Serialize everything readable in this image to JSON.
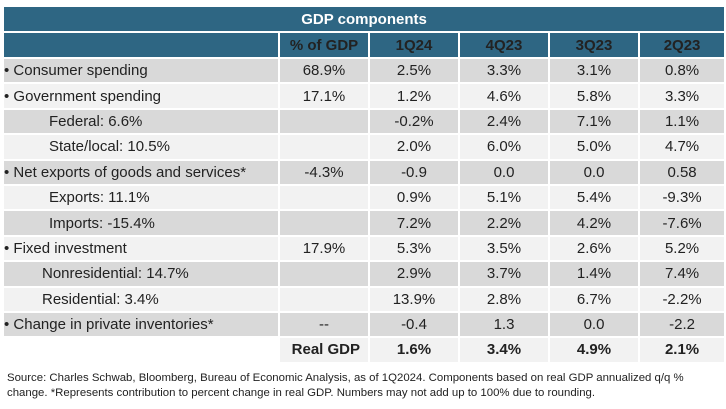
{
  "table": {
    "title": "GDP components",
    "columns": [
      "",
      "% of GDP",
      "1Q24",
      "4Q23",
      "3Q23",
      "2Q23"
    ],
    "rows": [
      {
        "label": "• Consumer spending",
        "share": "68.9%",
        "values": [
          "2.5%",
          "3.3%",
          "3.1%",
          "0.8%"
        ]
      },
      {
        "label": "• Government spending",
        "share": "17.1%",
        "values": [
          "1.2%",
          "4.6%",
          "5.8%",
          "3.3%"
        ]
      },
      {
        "label": "Federal: 6.6%",
        "share": "",
        "values": [
          "-0.2%",
          "2.4%",
          "7.1%",
          "1.1%"
        ]
      },
      {
        "label": "State/local: 10.5%",
        "share": "",
        "values": [
          "2.0%",
          "6.0%",
          "5.0%",
          "4.7%"
        ]
      },
      {
        "label": "• Net exports of goods and services*",
        "share": "-4.3%",
        "values": [
          "-0.9",
          "0.0",
          "0.0",
          "0.58"
        ]
      },
      {
        "label": "Exports: 11.1%",
        "share": "",
        "values": [
          "0.9%",
          "5.1%",
          "5.4%",
          "-9.3%"
        ]
      },
      {
        "label": "Imports: -15.4%",
        "share": "",
        "values": [
          "7.2%",
          "2.2%",
          "4.2%",
          "-7.6%"
        ]
      },
      {
        "label": "• Fixed investment",
        "share": "17.9%",
        "values": [
          "5.3%",
          "3.5%",
          "2.6%",
          "5.2%"
        ]
      },
      {
        "label": "Nonresidential: 14.7%",
        "share": "",
        "values": [
          "2.9%",
          "3.7%",
          "1.4%",
          "7.4%"
        ]
      },
      {
        "label": "Residential: 3.4%",
        "share": "",
        "values": [
          "13.9%",
          "2.8%",
          "6.7%",
          "-2.2%"
        ]
      },
      {
        "label": "• Change in private inventories*",
        "share": "--",
        "values": [
          "-0.4",
          "1.3",
          "0.0",
          "-2.2"
        ]
      }
    ],
    "total": {
      "label": "Real GDP",
      "values": [
        "1.6%",
        "3.4%",
        "4.9%",
        "2.1%"
      ]
    }
  },
  "footnote": "Source: Charles Schwab, Bloomberg, Bureau of Economic Analysis, as of 1Q2024. Components based on real GDP annualized q/q % change. *Represents contribution to percent change in real GDP. Numbers may not add up to 100% due to rounding."
}
